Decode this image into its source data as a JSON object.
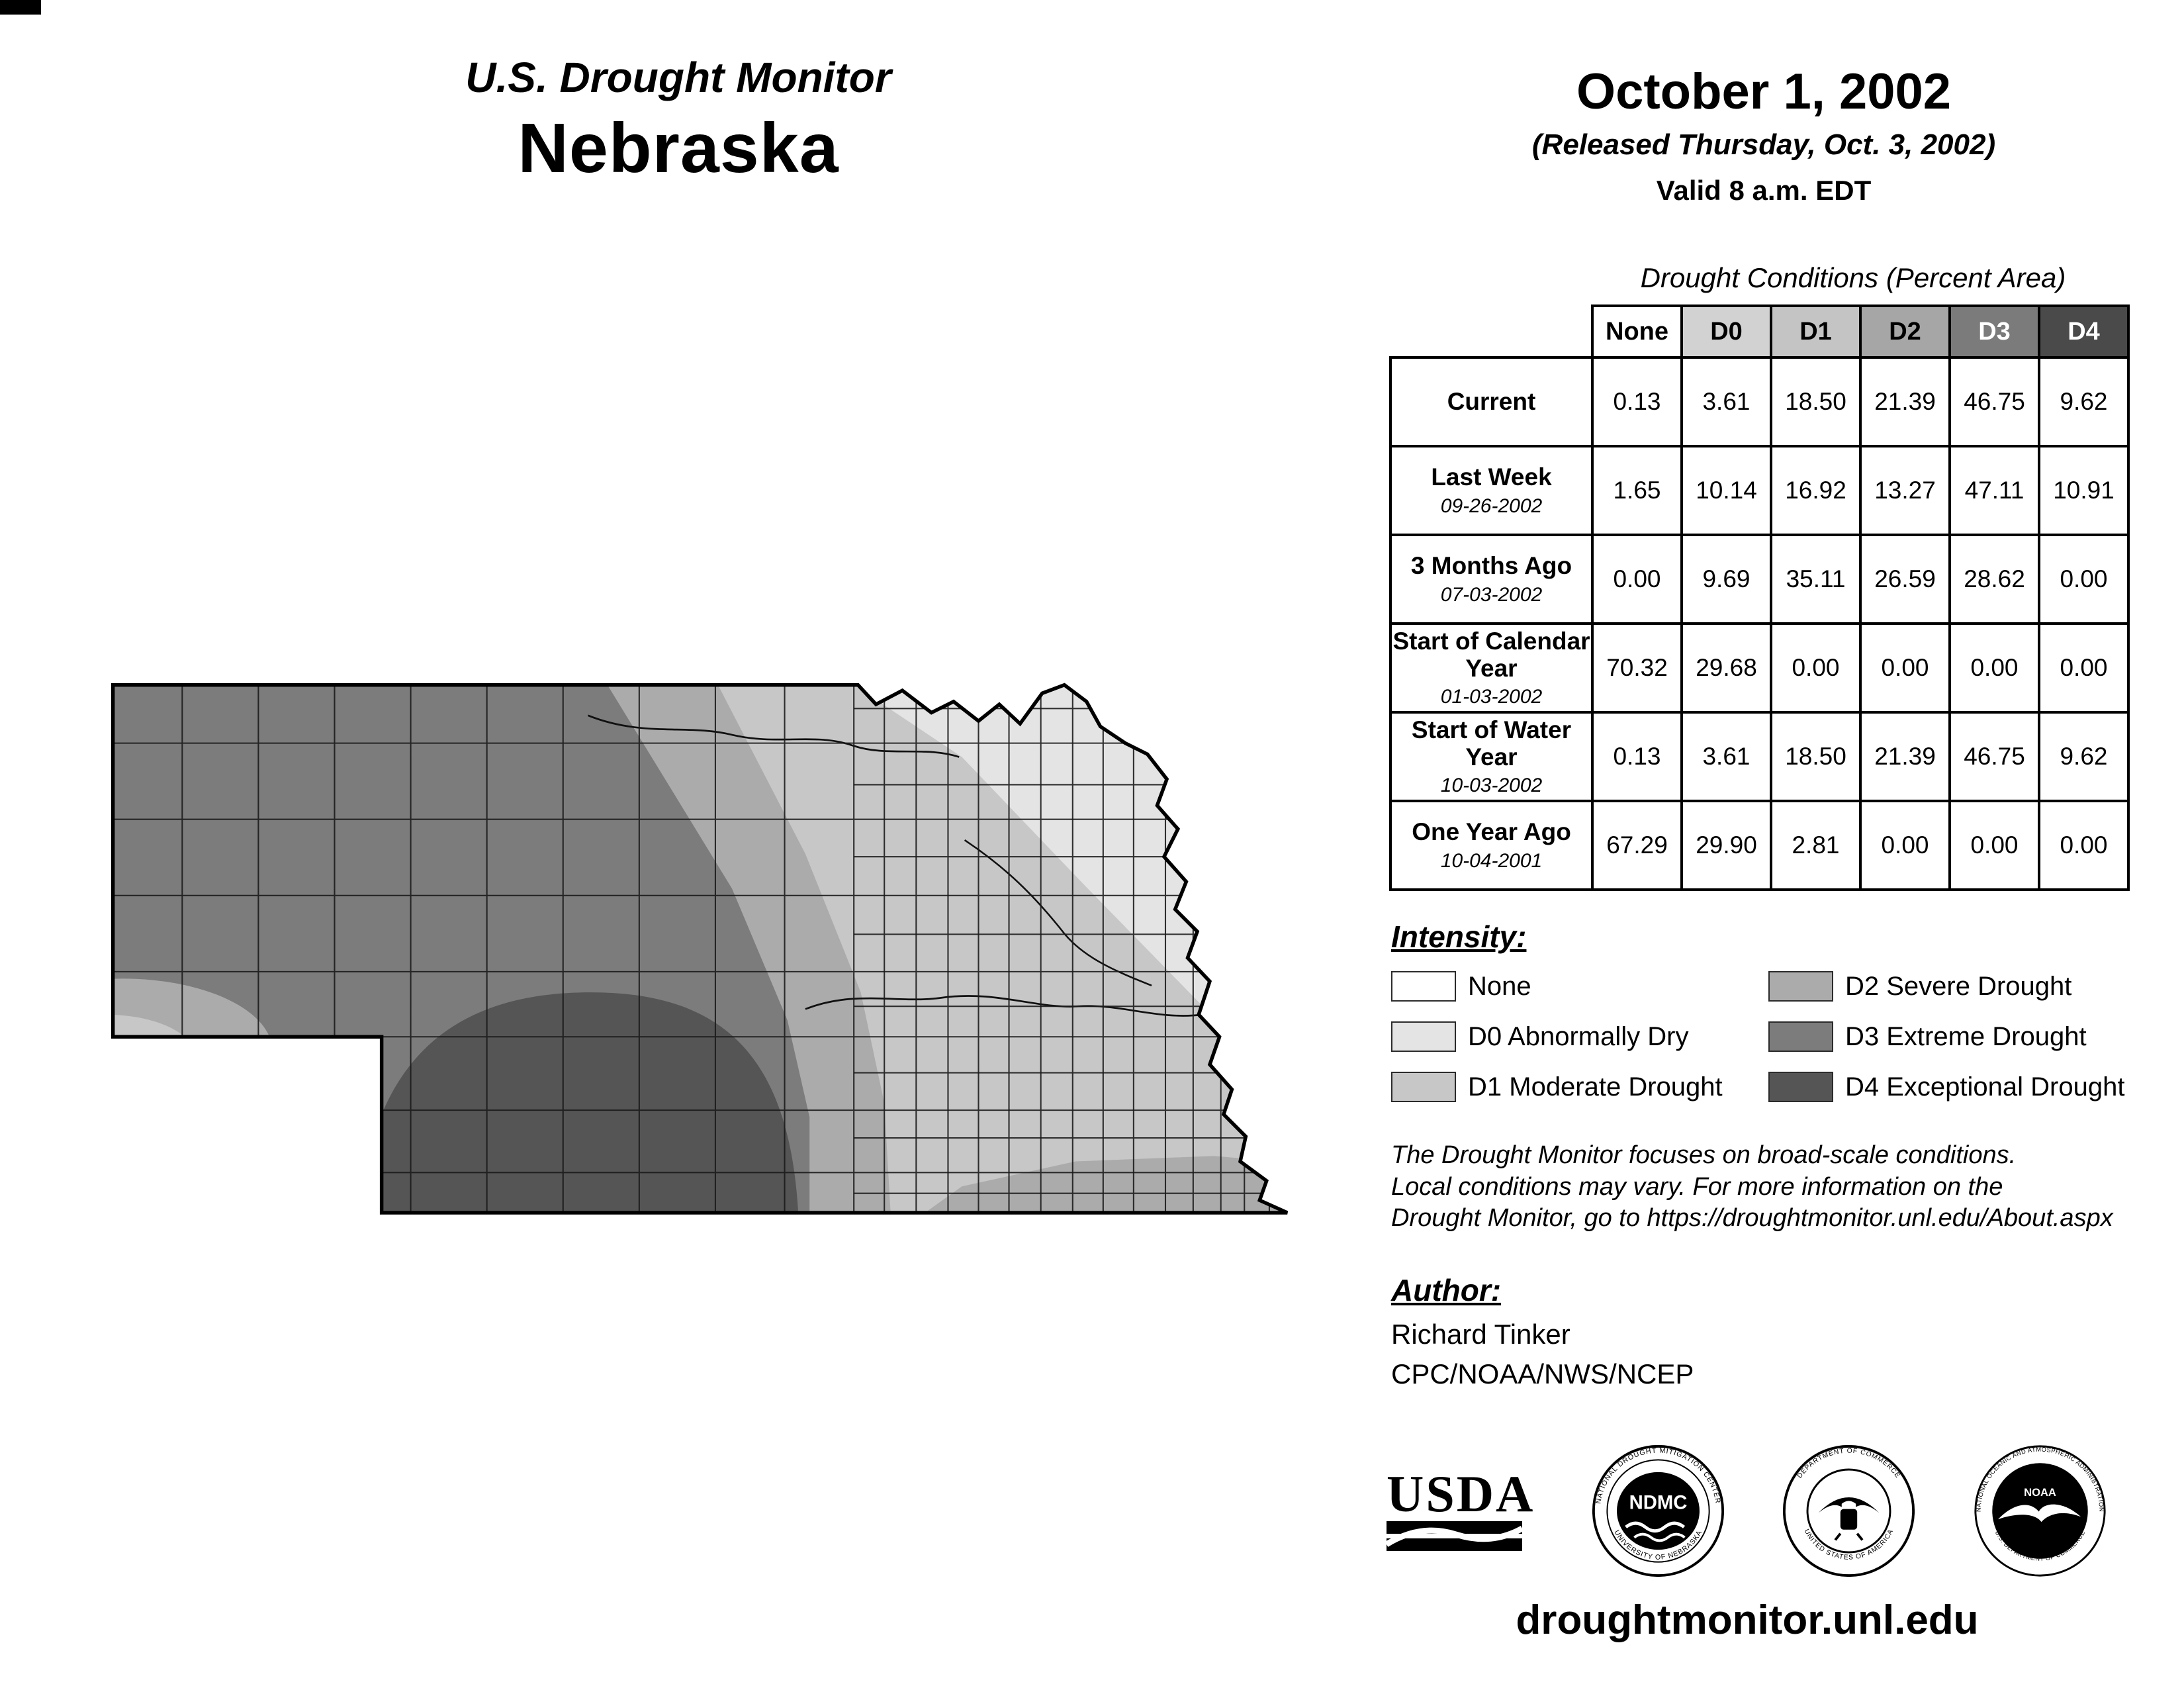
{
  "header": {
    "title_line1": "U.S. Drought Monitor",
    "title_line2": "Nebraska",
    "date": "October 1, 2002",
    "released": "(Released Thursday, Oct. 3, 2002)",
    "valid": "Valid 8 a.m. EDT"
  },
  "palette": {
    "none": "#ffffff",
    "d0": "#e4e4e4",
    "d1": "#c7c7c7",
    "d2": "#ababab",
    "d3": "#7c7c7c",
    "d4": "#555555"
  },
  "table": {
    "title": "Drought Conditions (Percent Area)",
    "columns": [
      "None",
      "D0",
      "D1",
      "D2",
      "D3",
      "D4"
    ],
    "column_keys": [
      "none",
      "d0",
      "d1",
      "d2",
      "d3",
      "d4"
    ],
    "header_colors": [
      "#ffffff",
      "#d2d2d2",
      "#c4c4c4",
      "#a6a6a6",
      "#7b7b7b",
      "#4a4a4a"
    ],
    "header_text_colors": [
      "#000000",
      "#000000",
      "#000000",
      "#000000",
      "#ffffff",
      "#ffffff"
    ],
    "rows": [
      {
        "label": "Current",
        "sublabel": "",
        "values": [
          "0.13",
          "3.61",
          "18.50",
          "21.39",
          "46.75",
          "9.62"
        ]
      },
      {
        "label": "Last Week",
        "sublabel": "09-26-2002",
        "values": [
          "1.65",
          "10.14",
          "16.92",
          "13.27",
          "47.11",
          "10.91"
        ]
      },
      {
        "label": "3 Months Ago",
        "sublabel": "07-03-2002",
        "values": [
          "0.00",
          "9.69",
          "35.11",
          "26.59",
          "28.62",
          "0.00"
        ]
      },
      {
        "label": "Start of Calendar Year",
        "sublabel": "01-03-2002",
        "values": [
          "70.32",
          "29.68",
          "0.00",
          "0.00",
          "0.00",
          "0.00"
        ]
      },
      {
        "label": "Start of Water Year",
        "sublabel": "10-03-2002",
        "values": [
          "0.13",
          "3.61",
          "18.50",
          "21.39",
          "46.75",
          "9.62"
        ]
      },
      {
        "label": "One Year Ago",
        "sublabel": "10-04-2001",
        "values": [
          "67.29",
          "29.90",
          "2.81",
          "0.00",
          "0.00",
          "0.00"
        ]
      }
    ]
  },
  "legend": {
    "heading": "Intensity:",
    "items": [
      {
        "key": "none",
        "label": "None"
      },
      {
        "key": "d0",
        "label": "D0 Abnormally Dry"
      },
      {
        "key": "d1",
        "label": "D1 Moderate Drought"
      },
      {
        "key": "d2",
        "label": "D2 Severe Drought"
      },
      {
        "key": "d3",
        "label": "D3 Extreme Drought"
      },
      {
        "key": "d4",
        "label": "D4 Exceptional Drought"
      }
    ]
  },
  "notes": {
    "line1": "The Drought Monitor focuses on broad-scale conditions.",
    "line2": "Local conditions may vary. For more information on the",
    "line3": "Drought Monitor, go to https://droughtmonitor.unl.edu/About.aspx"
  },
  "author": {
    "heading": "Author:",
    "name": "Richard Tinker",
    "org": "CPC/NOAA/NWS/NCEP"
  },
  "logos": {
    "usda": {
      "label": "USDA"
    },
    "ndmc": {
      "center": "NDMC",
      "ring_top": "NATIONAL DROUGHT MITIGATION CENTER",
      "ring_bottom": "UNIVERSITY OF NEBRASKA"
    },
    "doc": {
      "ring_top": "DEPARTMENT OF COMMERCE",
      "ring_bottom": "UNITED STATES OF AMERICA"
    },
    "noaa": {
      "center": "NOAA",
      "ring_top": "NATIONAL OCEANIC AND ATMOSPHERIC ADMINISTRATION",
      "ring_bottom": "U.S. DEPARTMENT OF COMMERCE"
    }
  },
  "footer": {
    "url": "droughtmonitor.unl.edu"
  }
}
